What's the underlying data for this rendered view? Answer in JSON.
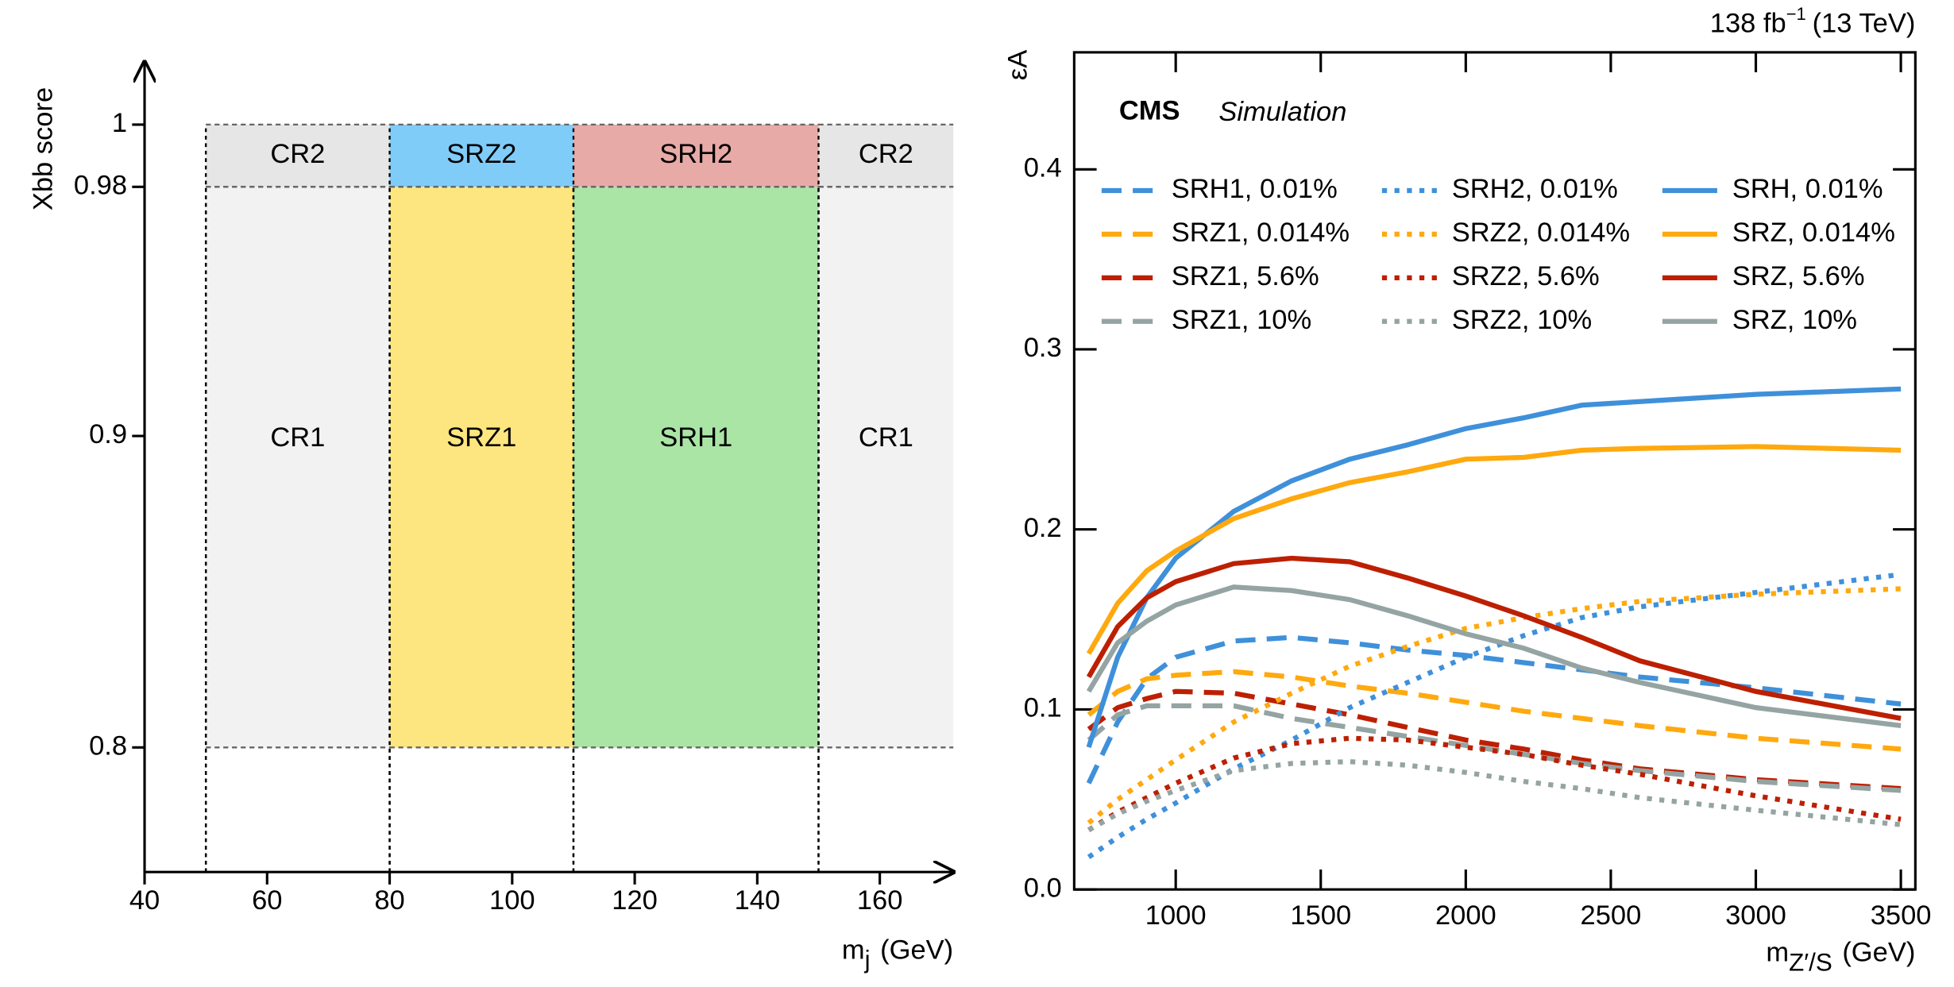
{
  "chart_data": [
    {
      "type": "regions",
      "y_label": "Xbb score",
      "x_label": "m",
      "x_label_sub": "j",
      "x_label_unit": "(GeV)",
      "xlim": [
        40,
        172
      ],
      "ylim": [
        0.76,
        1.02
      ],
      "xticks": [
        40,
        60,
        80,
        100,
        120,
        140,
        160
      ],
      "yticks": [
        0.8,
        0.9,
        0.98,
        1
      ],
      "regions": [
        {
          "label": "CR2",
          "x": [
            50,
            80
          ],
          "y": [
            0.98,
            1
          ],
          "color": "#e6e6e6"
        },
        {
          "label": "SRZ2",
          "x": [
            80,
            110
          ],
          "y": [
            0.98,
            1
          ],
          "color": "#80ccf9"
        },
        {
          "label": "SRH2",
          "x": [
            110,
            150
          ],
          "y": [
            0.98,
            1
          ],
          "color": "#e8aaa6"
        },
        {
          "label": "CR2",
          "x": [
            150,
            172
          ],
          "y": [
            0.98,
            1
          ],
          "color": "#e6e6e6"
        },
        {
          "label": "CR1",
          "x": [
            50,
            80
          ],
          "y": [
            0.8,
            0.98
          ],
          "color": "#f2f2f2"
        },
        {
          "label": "SRZ1",
          "x": [
            80,
            110
          ],
          "y": [
            0.8,
            0.98
          ],
          "color": "#fde680"
        },
        {
          "label": "SRH1",
          "x": [
            110,
            150
          ],
          "y": [
            0.8,
            0.98
          ],
          "color": "#aae5a5"
        },
        {
          "label": "CR1",
          "x": [
            150,
            172
          ],
          "y": [
            0.8,
            0.98
          ],
          "color": "#f2f2f2"
        }
      ]
    },
    {
      "type": "line",
      "top_label": [
        "138 fb",
        "−1",
        "(13 TeV)"
      ],
      "label": "CMS",
      "sublabel": "Simulation",
      "y_label": "εA",
      "x_label": "m",
      "x_label_sub": "Z′/S",
      "x_label_unit": "(GeV)",
      "xlim": [
        650,
        3550
      ],
      "ylim": [
        0,
        0.465
      ],
      "xticks": [
        1000,
        1500,
        2000,
        2500,
        3000,
        3500
      ],
      "yticks": [
        {
          "value": 0,
          "label": "0.0"
        },
        0.1,
        0.2,
        0.3,
        0.4
      ],
      "legend_columns": 3,
      "x": [
        700,
        800,
        900,
        1000,
        1200,
        1400,
        1600,
        1800,
        2000,
        2200,
        2400,
        2600,
        3000,
        3500
      ],
      "series": [
        {
          "name": "SRH1, 0.01%",
          "color": "#3f90da",
          "style": "dashed",
          "values": [
            0.059,
            0.093,
            0.117,
            0.129,
            0.138,
            0.14,
            0.137,
            0.133,
            0.13,
            0.126,
            0.122,
            0.118,
            0.112,
            0.103
          ]
        },
        {
          "name": "SRZ1, 0.014%",
          "color": "#ffa90e",
          "style": "dashed",
          "values": [
            0.097,
            0.11,
            0.117,
            0.119,
            0.121,
            0.118,
            0.113,
            0.109,
            0.104,
            0.099,
            0.095,
            0.091,
            0.084,
            0.078
          ]
        },
        {
          "name": "SRZ1, 5.6%",
          "color": "#bd1f01",
          "style": "dashed",
          "values": [
            0.089,
            0.101,
            0.106,
            0.11,
            0.109,
            0.103,
            0.097,
            0.09,
            0.083,
            0.078,
            0.072,
            0.067,
            0.061,
            0.056
          ]
        },
        {
          "name": "SRZ1, 10%",
          "color": "#94a4a2",
          "style": "dashed",
          "values": [
            0.083,
            0.097,
            0.102,
            0.102,
            0.102,
            0.095,
            0.09,
            0.085,
            0.08,
            0.075,
            0.07,
            0.066,
            0.06,
            0.055
          ]
        },
        {
          "name": "SRH2, 0.01%",
          "color": "#3f90da",
          "style": "dotted",
          "values": [
            0.018,
            0.029,
            0.039,
            0.048,
            0.067,
            0.083,
            0.101,
            0.115,
            0.129,
            0.141,
            0.151,
            0.157,
            0.165,
            0.175
          ]
        },
        {
          "name": "SRZ2, 0.014%",
          "color": "#ffa90e",
          "style": "dotted",
          "values": [
            0.037,
            0.05,
            0.061,
            0.072,
            0.093,
            0.109,
            0.124,
            0.135,
            0.145,
            0.151,
            0.156,
            0.16,
            0.164,
            0.167
          ]
        },
        {
          "name": "SRZ2, 5.6%",
          "color": "#bd1f01",
          "style": "dotted",
          "values": [
            0.033,
            0.043,
            0.051,
            0.059,
            0.073,
            0.081,
            0.084,
            0.083,
            0.079,
            0.075,
            0.069,
            0.064,
            0.052,
            0.039
          ]
        },
        {
          "name": "SRZ2, 10%",
          "color": "#94a4a2",
          "style": "dotted",
          "values": [
            0.033,
            0.042,
            0.049,
            0.055,
            0.066,
            0.07,
            0.071,
            0.069,
            0.065,
            0.06,
            0.056,
            0.051,
            0.044,
            0.036
          ]
        },
        {
          "name": "SRH, 0.01%",
          "color": "#3f90da",
          "style": "solid",
          "values": [
            0.079,
            0.129,
            0.162,
            0.184,
            0.21,
            0.227,
            0.239,
            0.247,
            0.256,
            0.262,
            0.269,
            0.271,
            0.275,
            0.278
          ]
        },
        {
          "name": "SRZ, 0.014%",
          "color": "#ffa90e",
          "style": "solid",
          "values": [
            0.131,
            0.159,
            0.177,
            0.188,
            0.206,
            0.217,
            0.226,
            0.232,
            0.239,
            0.24,
            0.244,
            0.245,
            0.246,
            0.244
          ]
        },
        {
          "name": "SRZ, 5.6%",
          "color": "#bd1f01",
          "style": "solid",
          "values": [
            0.118,
            0.146,
            0.162,
            0.171,
            0.181,
            0.184,
            0.182,
            0.173,
            0.163,
            0.152,
            0.14,
            0.127,
            0.11,
            0.095
          ]
        },
        {
          "name": "SRZ, 10%",
          "color": "#94a4a2",
          "style": "solid",
          "values": [
            0.11,
            0.137,
            0.149,
            0.158,
            0.168,
            0.166,
            0.161,
            0.152,
            0.142,
            0.134,
            0.123,
            0.115,
            0.101,
            0.091
          ]
        }
      ]
    }
  ]
}
